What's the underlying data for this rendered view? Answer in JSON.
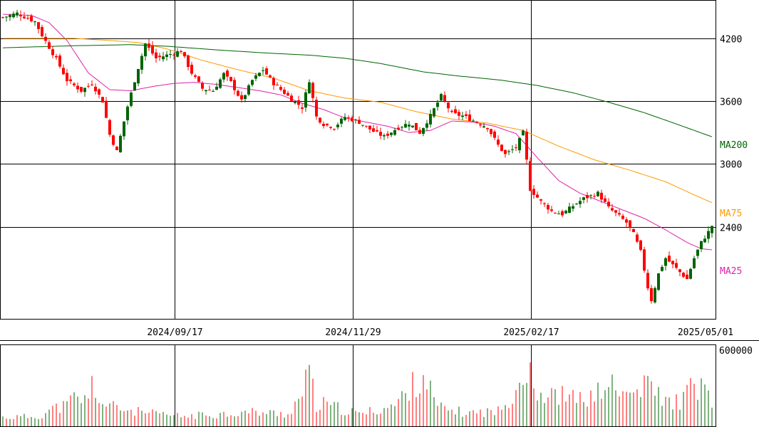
{
  "chart_data": [
    {
      "type": "candlestick",
      "x_tick_labels": [
        "2024/09/17",
        "2024/11/29",
        "2025/02/17",
        "2025/05/01"
      ],
      "y_tick_labels": [
        "4200",
        "3600",
        "3000",
        "2400"
      ],
      "ylim": [
        1520,
        4560
      ],
      "grid": true,
      "up_color": "#006400",
      "down_color": "#ff0000",
      "candle_count": 200,
      "close_path": [
        [
          0,
          4400
        ],
        [
          4,
          4440
        ],
        [
          9,
          4360
        ],
        [
          11,
          4230
        ],
        [
          15,
          4000
        ],
        [
          18,
          3800
        ],
        [
          22,
          3700
        ],
        [
          25,
          3770
        ],
        [
          28,
          3600
        ],
        [
          30,
          3280
        ],
        [
          32,
          3120
        ],
        [
          35,
          3550
        ],
        [
          38,
          3920
        ],
        [
          40,
          4150
        ],
        [
          43,
          4010
        ],
        [
          47,
          4050
        ],
        [
          50,
          4080
        ],
        [
          53,
          3870
        ],
        [
          56,
          3720
        ],
        [
          59,
          3700
        ],
        [
          62,
          3860
        ],
        [
          64,
          3780
        ],
        [
          67,
          3600
        ],
        [
          70,
          3800
        ],
        [
          73,
          3900
        ],
        [
          76,
          3770
        ],
        [
          80,
          3650
        ],
        [
          84,
          3540
        ],
        [
          86,
          3800
        ],
        [
          88,
          3450
        ],
        [
          90,
          3380
        ],
        [
          93,
          3350
        ],
        [
          96,
          3450
        ],
        [
          100,
          3400
        ],
        [
          104,
          3310
        ],
        [
          107,
          3260
        ],
        [
          111,
          3350
        ],
        [
          114,
          3390
        ],
        [
          117,
          3300
        ],
        [
          120,
          3460
        ],
        [
          123,
          3650
        ],
        [
          126,
          3480
        ],
        [
          129,
          3460
        ],
        [
          133,
          3400
        ],
        [
          136,
          3350
        ],
        [
          139,
          3180
        ],
        [
          141,
          3090
        ],
        [
          144,
          3160
        ],
        [
          146,
          3300
        ],
        [
          148,
          2760
        ],
        [
          151,
          2640
        ],
        [
          154,
          2550
        ],
        [
          157,
          2520
        ],
        [
          160,
          2600
        ],
        [
          163,
          2670
        ],
        [
          167,
          2720
        ],
        [
          170,
          2580
        ],
        [
          173,
          2500
        ],
        [
          175,
          2440
        ],
        [
          177,
          2330
        ],
        [
          179,
          2160
        ],
        [
          181,
          1820
        ],
        [
          182,
          1700
        ],
        [
          184,
          1950
        ],
        [
          186,
          2100
        ],
        [
          189,
          2000
        ],
        [
          192,
          1900
        ],
        [
          194,
          2100
        ],
        [
          196,
          2250
        ],
        [
          198,
          2350
        ],
        [
          199,
          2410
        ]
      ],
      "ma_lines": [
        {
          "name": "MA25",
          "color": "#dd22aa",
          "points": [
            [
              0,
              4430
            ],
            [
              8,
              4420
            ],
            [
              13,
              4350
            ],
            [
              18,
              4180
            ],
            [
              24,
              3870
            ],
            [
              30,
              3710
            ],
            [
              36,
              3700
            ],
            [
              42,
              3740
            ],
            [
              48,
              3770
            ],
            [
              54,
              3780
            ],
            [
              60,
              3760
            ],
            [
              66,
              3730
            ],
            [
              72,
              3700
            ],
            [
              78,
              3660
            ],
            [
              84,
              3580
            ],
            [
              90,
              3520
            ],
            [
              96,
              3440
            ],
            [
              102,
              3400
            ],
            [
              108,
              3360
            ],
            [
              114,
              3300
            ],
            [
              120,
              3320
            ],
            [
              126,
              3410
            ],
            [
              132,
              3400
            ],
            [
              138,
              3360
            ],
            [
              144,
              3290
            ],
            [
              150,
              3060
            ],
            [
              156,
              2840
            ],
            [
              162,
              2720
            ],
            [
              168,
              2640
            ],
            [
              174,
              2560
            ],
            [
              180,
              2480
            ],
            [
              186,
              2370
            ],
            [
              192,
              2250
            ],
            [
              196,
              2190
            ],
            [
              199,
              2180
            ]
          ]
        },
        {
          "name": "MA75",
          "color": "#ff9900",
          "points": [
            [
              0,
              4200
            ],
            [
              20,
              4200
            ],
            [
              30,
              4180
            ],
            [
              38,
              4160
            ],
            [
              46,
              4100
            ],
            [
              56,
              3990
            ],
            [
              66,
              3900
            ],
            [
              76,
              3820
            ],
            [
              86,
              3700
            ],
            [
              96,
              3630
            ],
            [
              106,
              3590
            ],
            [
              116,
              3500
            ],
            [
              126,
              3430
            ],
            [
              136,
              3390
            ],
            [
              146,
              3320
            ],
            [
              156,
              3170
            ],
            [
              166,
              3040
            ],
            [
              176,
              2940
            ],
            [
              186,
              2830
            ],
            [
              193,
              2720
            ],
            [
              199,
              2630
            ]
          ]
        },
        {
          "name": "MA200",
          "color": "#006400",
          "points": [
            [
              0,
              4110
            ],
            [
              20,
              4130
            ],
            [
              36,
              4140
            ],
            [
              46,
              4125
            ],
            [
              60,
              4090
            ],
            [
              74,
              4060
            ],
            [
              86,
              4040
            ],
            [
              96,
              4010
            ],
            [
              106,
              3960
            ],
            [
              118,
              3880
            ],
            [
              128,
              3840
            ],
            [
              140,
              3800
            ],
            [
              150,
              3750
            ],
            [
              160,
              3680
            ],
            [
              170,
              3590
            ],
            [
              180,
              3490
            ],
            [
              190,
              3370
            ],
            [
              199,
              3260
            ]
          ]
        }
      ]
    },
    {
      "type": "bar",
      "name": "volume",
      "y_tick_labels": [
        "600000"
      ],
      "ylim": [
        0,
        600000
      ],
      "samples": [
        [
          0,
          80000
        ],
        [
          10,
          90000
        ],
        [
          14,
          160000
        ],
        [
          18,
          190000
        ],
        [
          20,
          260000
        ],
        [
          24,
          230000
        ],
        [
          25,
          390000
        ],
        [
          28,
          200000
        ],
        [
          33,
          160000
        ],
        [
          40,
          120000
        ],
        [
          50,
          90000
        ],
        [
          60,
          110000
        ],
        [
          70,
          130000
        ],
        [
          80,
          110000
        ],
        [
          84,
          290000
        ],
        [
          86,
          500000
        ],
        [
          88,
          170000
        ],
        [
          90,
          200000
        ],
        [
          100,
          110000
        ],
        [
          110,
          190000
        ],
        [
          118,
          480000
        ],
        [
          122,
          170000
        ],
        [
          130,
          120000
        ],
        [
          140,
          140000
        ],
        [
          148,
          590000
        ],
        [
          149,
          350000
        ],
        [
          151,
          300000
        ],
        [
          153,
          240000
        ],
        [
          155,
          300000
        ],
        [
          160,
          250000
        ],
        [
          166,
          260000
        ],
        [
          170,
          420000
        ],
        [
          172,
          300000
        ],
        [
          176,
          290000
        ],
        [
          180,
          350000
        ],
        [
          182,
          380000
        ],
        [
          183,
          330000
        ],
        [
          186,
          220000
        ],
        [
          190,
          230000
        ],
        [
          194,
          370000
        ],
        [
          196,
          350000
        ],
        [
          199,
          240000
        ]
      ]
    }
  ],
  "labels": {
    "ma200": "MA200",
    "ma75": "MA75",
    "ma25": "MA25"
  }
}
